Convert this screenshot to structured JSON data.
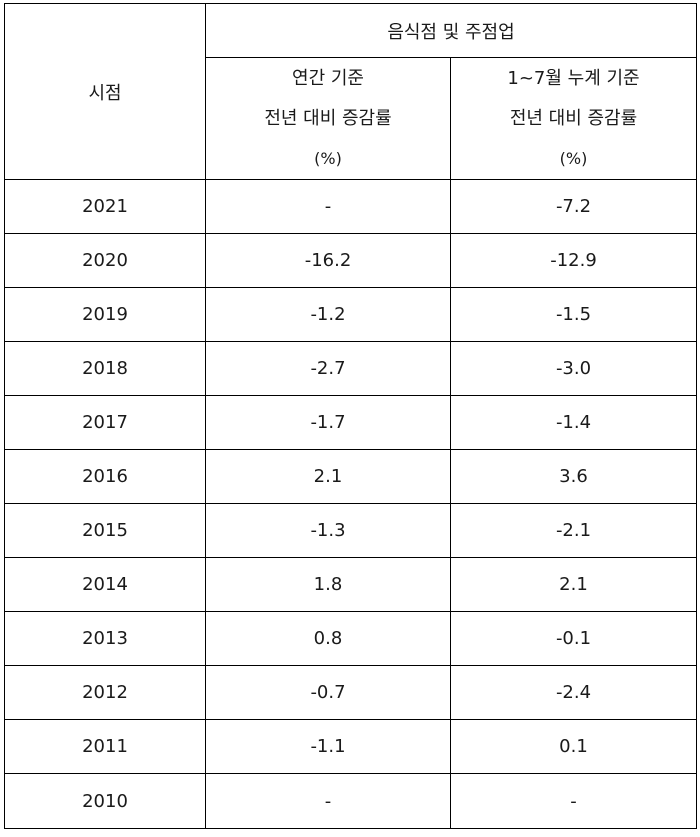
{
  "table": {
    "header": {
      "time_label": "시점",
      "group_label": "음식점 및 주점업",
      "col_annual": {
        "line1": "연간 기준",
        "line2": "전년 대비 증감률",
        "unit": "(%)"
      },
      "col_cumulative": {
        "line1": "1~7월 누계 기준",
        "line2": "전년 대비 증감률",
        "unit": "(%)"
      }
    },
    "rows": [
      {
        "year": "2021",
        "annual": "-",
        "cumulative": "-7.2"
      },
      {
        "year": "2020",
        "annual": "-16.2",
        "cumulative": "-12.9"
      },
      {
        "year": "2019",
        "annual": "-1.2",
        "cumulative": "-1.5"
      },
      {
        "year": "2018",
        "annual": "-2.7",
        "cumulative": "-3.0"
      },
      {
        "year": "2017",
        "annual": "-1.7",
        "cumulative": "-1.4"
      },
      {
        "year": "2016",
        "annual": "2.1",
        "cumulative": "3.6"
      },
      {
        "year": "2015",
        "annual": "-1.3",
        "cumulative": "-2.1"
      },
      {
        "year": "2014",
        "annual": "1.8",
        "cumulative": "2.1"
      },
      {
        "year": "2013",
        "annual": "0.8",
        "cumulative": "-0.1"
      },
      {
        "year": "2012",
        "annual": "-0.7",
        "cumulative": "-2.4"
      },
      {
        "year": "2011",
        "annual": "-1.1",
        "cumulative": "0.1"
      },
      {
        "year": "2010",
        "annual": "-",
        "cumulative": "-"
      }
    ]
  }
}
